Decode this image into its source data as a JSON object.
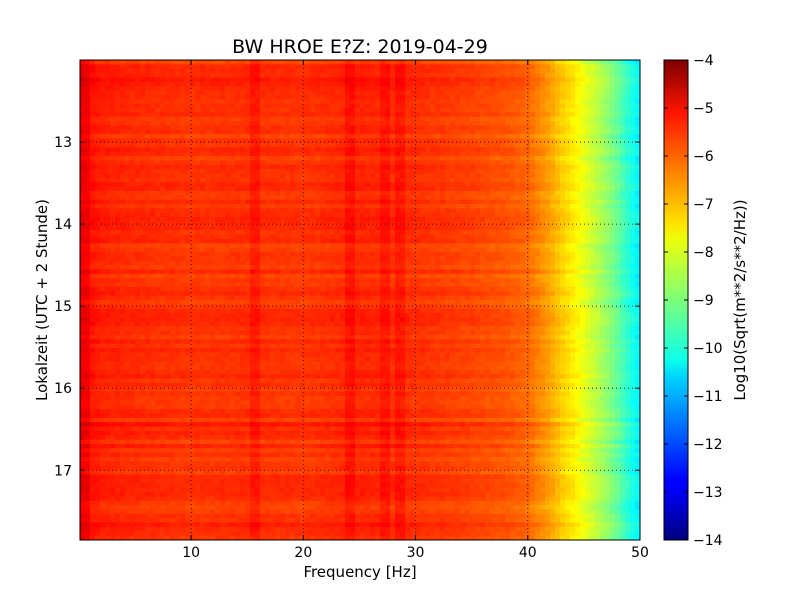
{
  "chart_data": {
    "type": "heatmap",
    "title": "BW HROE E?Z: 2019-04-29",
    "xlabel": "Frequency [Hz]",
    "ylabel": "Lokalzeit (UTC + 2 Stunde)",
    "xlim": [
      0.1,
      50
    ],
    "ylim": [
      12.0,
      17.85
    ],
    "y_inverted": true,
    "x_ticks": [
      10,
      20,
      30,
      40,
      50
    ],
    "y_ticks": [
      13,
      14,
      15,
      16,
      17
    ],
    "grid": true,
    "colormap": "jet",
    "colorbar": {
      "label": "Log10(Sqrt(m**2/s**2/Hz))",
      "range": [
        -14,
        -4
      ],
      "ticks": [
        -4,
        -5,
        -6,
        -7,
        -8,
        -9,
        -10,
        -11,
        -12,
        -13,
        -14
      ]
    },
    "frequency_profile": {
      "x": [
        0,
        2,
        5,
        10,
        15,
        20,
        25,
        30,
        35,
        38,
        40,
        41,
        42,
        43,
        44,
        45,
        46,
        47,
        48,
        49,
        50
      ],
      "z": [
        -5.3,
        -5.6,
        -5.7,
        -5.8,
        -5.75,
        -5.8,
        -5.65,
        -5.75,
        -5.95,
        -6.1,
        -6.3,
        -6.6,
        -6.9,
        -7.3,
        -7.6,
        -8.0,
        -8.4,
        -8.8,
        -9.3,
        -9.9,
        -10.4
      ]
    },
    "enhanced_bands_hz": [
      0.6,
      15.5,
      24.2,
      27.3,
      28.5
    ],
    "quiet_periods_hours": [
      12.2,
      13.9,
      15.1,
      16.5,
      17.6
    ]
  }
}
